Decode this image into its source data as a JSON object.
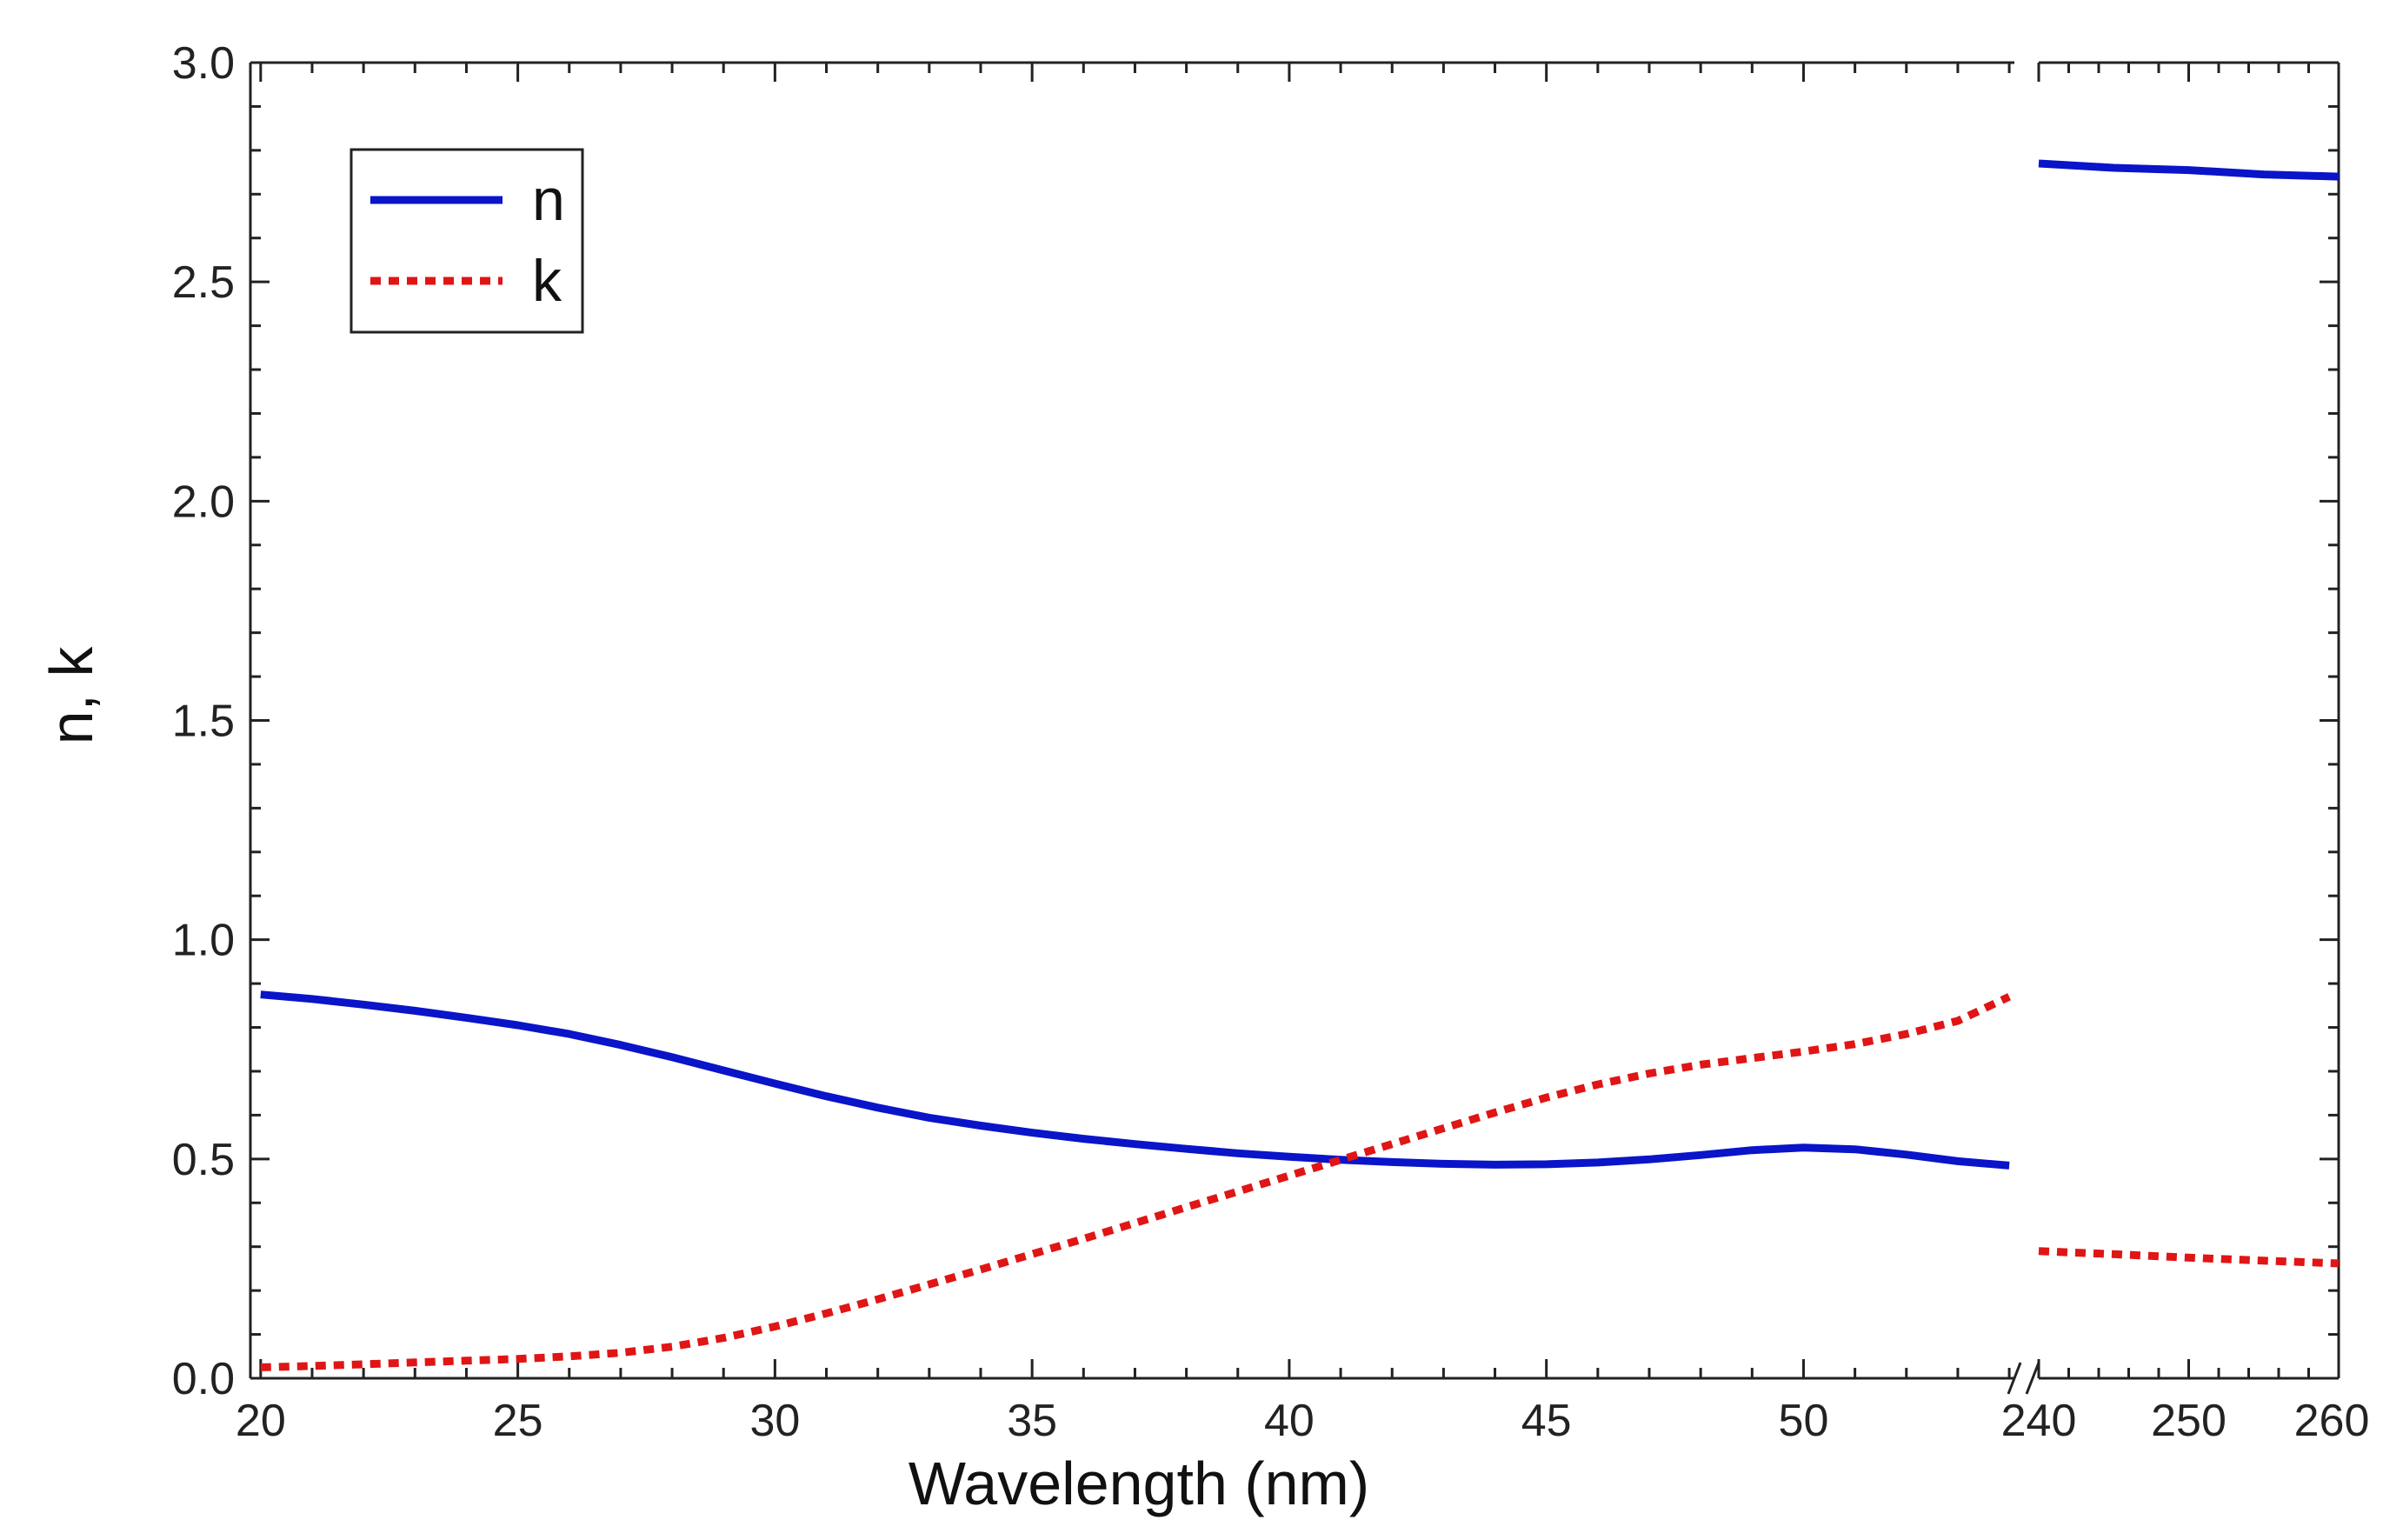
{
  "chart_data": {
    "type": "line",
    "xlabel": "Wavelength (nm)",
    "ylabel": "n, k",
    "ylim": [
      0,
      3.0
    ],
    "yticks": [
      "0.0",
      "0.5",
      "1.0",
      "1.5",
      "2.0",
      "2.5",
      "3.0"
    ],
    "broken_x_axis": true,
    "x_segments": [
      {
        "xlim": [
          19.8,
          54.1
        ],
        "ticks": [
          "20",
          "25",
          "30",
          "35",
          "40",
          "45",
          "50"
        ]
      },
      {
        "xlim": [
          240,
          260
        ],
        "ticks": [
          "240",
          "250",
          "260"
        ]
      }
    ],
    "legend": {
      "position": "top-left"
    },
    "series": [
      {
        "name": "n",
        "style": "solid",
        "color": "#0a14c8",
        "segments": [
          [
            [
              20,
              0.875
            ],
            [
              21,
              0.865
            ],
            [
              22,
              0.852
            ],
            [
              23,
              0.838
            ],
            [
              24,
              0.822
            ],
            [
              25,
              0.805
            ],
            [
              26,
              0.785
            ],
            [
              27,
              0.76
            ],
            [
              28,
              0.732
            ],
            [
              29,
              0.702
            ],
            [
              30,
              0.672
            ],
            [
              31,
              0.643
            ],
            [
              32,
              0.617
            ],
            [
              33,
              0.594
            ],
            [
              34,
              0.576
            ],
            [
              35,
              0.56
            ],
            [
              36,
              0.546
            ],
            [
              37,
              0.534
            ],
            [
              38,
              0.523
            ],
            [
              39,
              0.513
            ],
            [
              40,
              0.505
            ],
            [
              41,
              0.498
            ],
            [
              42,
              0.493
            ],
            [
              43,
              0.489
            ],
            [
              44,
              0.487
            ],
            [
              45,
              0.488
            ],
            [
              46,
              0.492
            ],
            [
              47,
              0.499
            ],
            [
              48,
              0.509
            ],
            [
              49,
              0.52
            ],
            [
              50,
              0.526
            ],
            [
              51,
              0.522
            ],
            [
              52,
              0.51
            ],
            [
              53,
              0.495
            ],
            [
              54,
              0.485
            ]
          ],
          [
            [
              240,
              2.77
            ],
            [
              245,
              2.76
            ],
            [
              250,
              2.755
            ],
            [
              255,
              2.745
            ],
            [
              260,
              2.74
            ]
          ]
        ]
      },
      {
        "name": "k",
        "style": "dotted",
        "color": "#e01515",
        "segments": [
          [
            [
              20,
              0.025
            ],
            [
              21,
              0.028
            ],
            [
              22,
              0.032
            ],
            [
              23,
              0.036
            ],
            [
              24,
              0.04
            ],
            [
              25,
              0.044
            ],
            [
              26,
              0.05
            ],
            [
              27,
              0.058
            ],
            [
              28,
              0.072
            ],
            [
              29,
              0.092
            ],
            [
              30,
              0.118
            ],
            [
              31,
              0.148
            ],
            [
              32,
              0.18
            ],
            [
              33,
              0.214
            ],
            [
              34,
              0.248
            ],
            [
              35,
              0.283
            ],
            [
              36,
              0.318
            ],
            [
              37,
              0.354
            ],
            [
              38,
              0.39
            ],
            [
              39,
              0.426
            ],
            [
              40,
              0.462
            ],
            [
              41,
              0.498
            ],
            [
              42,
              0.534
            ],
            [
              43,
              0.57
            ],
            [
              44,
              0.606
            ],
            [
              45,
              0.64
            ],
            [
              46,
              0.67
            ],
            [
              47,
              0.695
            ],
            [
              48,
              0.715
            ],
            [
              49,
              0.73
            ],
            [
              50,
              0.745
            ],
            [
              51,
              0.762
            ],
            [
              52,
              0.785
            ],
            [
              53,
              0.815
            ],
            [
              54,
              0.87
            ]
          ],
          [
            [
              240,
              0.29
            ],
            [
              245,
              0.283
            ],
            [
              250,
              0.275
            ],
            [
              255,
              0.268
            ],
            [
              260,
              0.262
            ]
          ]
        ]
      }
    ]
  }
}
